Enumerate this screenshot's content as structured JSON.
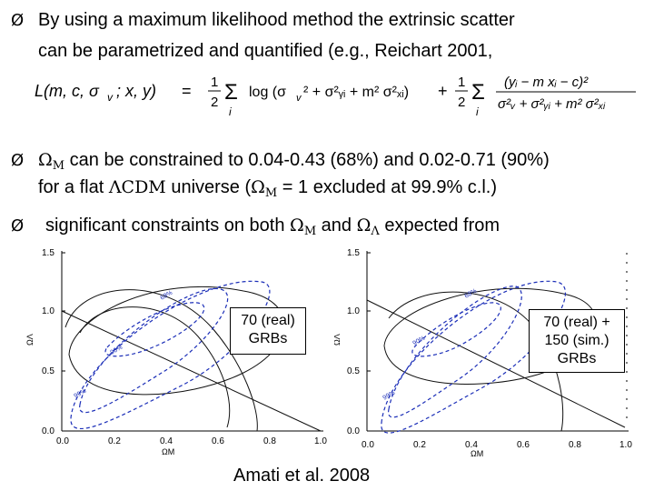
{
  "bullets": [
    {
      "marker": "Ø",
      "line1": "By using a maximum likelihood method the extrinsic scatter",
      "line2": "can be parametrized and quantified (e.g., Reichart 2001,"
    },
    {
      "marker": "Ø",
      "omega_m": "ΩM",
      "line1_rest": " can be constrained to 0.04-0.43 (68%) and 0.02-0.71 (90%)",
      "line2_pre": "for a flat ",
      "lambda_cdm": "ΛCDM",
      "line2_mid": " universe (",
      "line2_post": " = 1 excluded at 99.9% c.l.)"
    },
    {
      "marker": "Ø",
      "pre": "significant constraints on both ",
      "omega_m": "ΩM",
      "and": " and ",
      "omega_l": "ΩΛ",
      "post": "  expected from"
    }
  ],
  "formula": {
    "lhs": "L(m, c, σ",
    "lhs_sub": "v",
    "lhs_rest": " ; x, y)",
    "eq": "=",
    "half": "1",
    "two": "2",
    "sum": "Σ",
    "idx": "i",
    "term1": "log (σ",
    "term1_rest": "² + σ²ᵧᵢ + m² σ²ₓᵢ)",
    "plus": "+",
    "num2": "(yᵢ − m xᵢ − c)²",
    "den2": "σ²ᵥ + σ²ᵧᵢ + m² σ²ₓᵢ"
  },
  "plots": [
    {
      "label_line1": "70 (real)",
      "label_line2": "GRBs",
      "xlabel": "ΩM",
      "ylabel": "ΩΛ",
      "x_ticks": [
        "0.0",
        "0.2",
        "0.4",
        "0.6",
        "0.8",
        "1.0"
      ],
      "y_ticks": [
        "0.0",
        "0.5",
        "1.0",
        "1.5"
      ],
      "contour_labels": [
        "68%",
        "90%",
        "99%"
      ]
    },
    {
      "label_line1": "70 (real) +",
      "label_line2": "150 (sim.)",
      "label_line3": "GRBs",
      "xlabel": "ΩM",
      "ylabel": "ΩΛ",
      "x_ticks": [
        "0.0",
        "0.2",
        "0.4",
        "0.6",
        "0.8",
        "1.0"
      ],
      "y_ticks": [
        "0.0",
        "0.5",
        "1.0",
        "1.5"
      ],
      "contour_labels": [
        "68%",
        "90%",
        "99%"
      ]
    }
  ],
  "footer": "Amati et al. 2008",
  "colors": {
    "contour_blue": "#1c2fb8",
    "contour_black": "#111111"
  }
}
